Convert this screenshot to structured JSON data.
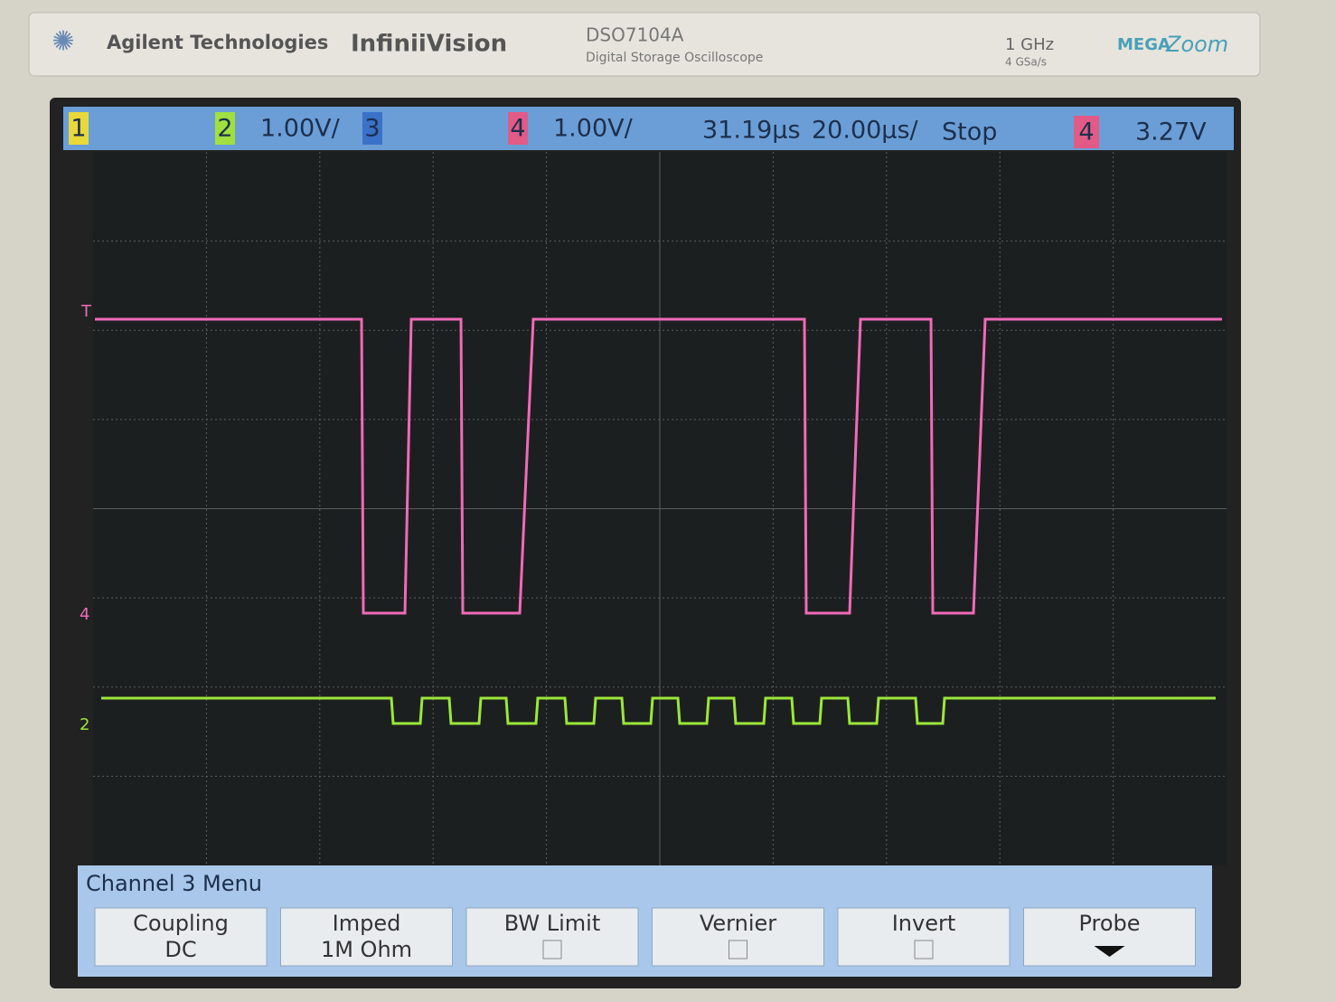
{
  "header": {
    "brand": "Agilent Technologies",
    "series": "InfiniiVision",
    "model": "DSO7104A",
    "model_description": "Digital Storage Oscilloscope",
    "bandwidth": "1 GHz",
    "sample_rate": "4 GSa/s",
    "logo_left": "MEGA",
    "logo_right": "Zoom"
  },
  "status": {
    "ch1": "1",
    "ch2": "2",
    "ch2_scale": "1.00V/",
    "ch3": "3",
    "ch4": "4",
    "ch4_scale": "1.00V/",
    "delay": "31.19µs",
    "timebase": "20.00µs/",
    "run_state": "Stop",
    "trigger_source": "4",
    "trigger_level": "3.27V"
  },
  "markers": {
    "trigger": "T",
    "ch4": "4",
    "ch2": "2"
  },
  "menu": {
    "title": "Channel 3  Menu",
    "softkeys": [
      {
        "label": "Coupling",
        "value": "DC"
      },
      {
        "label": "Imped",
        "value": "1M Ohm"
      },
      {
        "label": "BW Limit"
      },
      {
        "label": "Vernier"
      },
      {
        "label": "Invert"
      },
      {
        "label": "Probe"
      }
    ]
  }
}
